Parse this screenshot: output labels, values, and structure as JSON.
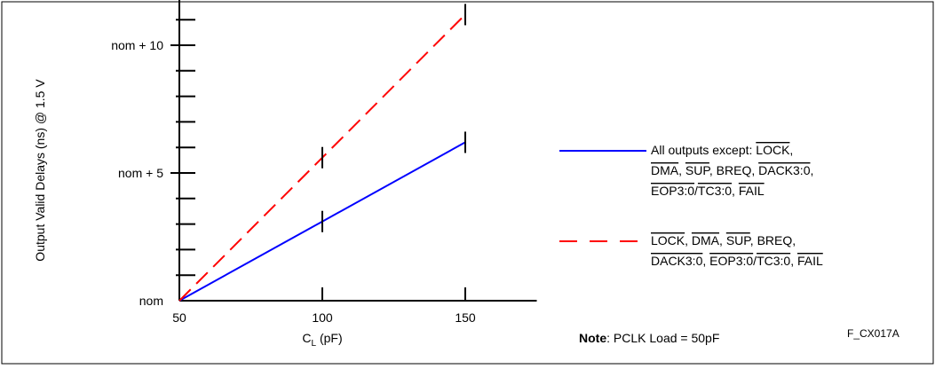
{
  "chart_data": {
    "type": "line",
    "title": "",
    "xlabel": {
      "base": "C",
      "sub": "L",
      "unit": "(pF)"
    },
    "ylabel": "Output Valid Delays (ns) @ 1.5 V",
    "x_ticks": [
      "50",
      "100",
      "150"
    ],
    "y_ticks": [
      "nom",
      "nom + 5",
      "nom + 10"
    ],
    "xlim": [
      50,
      175
    ],
    "ylim": [
      0,
      12.5
    ],
    "series": [
      {
        "color": "#0000ff",
        "dash": "solid",
        "x": [
          50,
          100,
          150
        ],
        "y": [
          0,
          3.1,
          6.2
        ],
        "legend_lines": [
          [
            {
              "t": "All outputs except: ",
              "o": false
            },
            {
              "t": "LOCK",
              "o": true
            },
            {
              "t": ",",
              "o": false
            }
          ],
          [
            {
              "t": "DMA",
              "o": true
            },
            {
              "t": ", ",
              "o": false
            },
            {
              "t": "SUP",
              "o": true
            },
            {
              "t": ", BREQ, ",
              "o": false
            },
            {
              "t": "DACK3:0",
              "o": true
            },
            {
              "t": ",",
              "o": false
            }
          ],
          [
            {
              "t": "EOP3:0",
              "o": true
            },
            {
              "t": "/",
              "o": false
            },
            {
              "t": "TC3:0",
              "o": true
            },
            {
              "t": ", ",
              "o": false
            },
            {
              "t": "FAIL",
              "o": true
            }
          ]
        ]
      },
      {
        "color": "#ff0000",
        "dash": "dashed",
        "x": [
          50,
          100,
          150
        ],
        "y": [
          0,
          5.6,
          11.2
        ],
        "legend_lines": [
          [
            {
              "t": "LOCK",
              "o": true
            },
            {
              "t": ", ",
              "o": false
            },
            {
              "t": "DMA",
              "o": true
            },
            {
              "t": ", ",
              "o": false
            },
            {
              "t": "SUP",
              "o": true
            },
            {
              "t": ", BREQ,",
              "o": false
            }
          ],
          [
            {
              "t": "DACK3:0",
              "o": true
            },
            {
              "t": ", ",
              "o": false
            },
            {
              "t": "EOP3:0",
              "o": true
            },
            {
              "t": "/",
              "o": false
            },
            {
              "t": "TC3:0",
              "o": true
            },
            {
              "t": ", ",
              "o": false
            },
            {
              "t": "FAIL",
              "o": true
            }
          ]
        ]
      }
    ],
    "note": {
      "bold": "Note",
      "text": ": PCLK Load = 50pF"
    },
    "figure_id": "F_CX017A",
    "legend_position": "right",
    "grid": false
  }
}
